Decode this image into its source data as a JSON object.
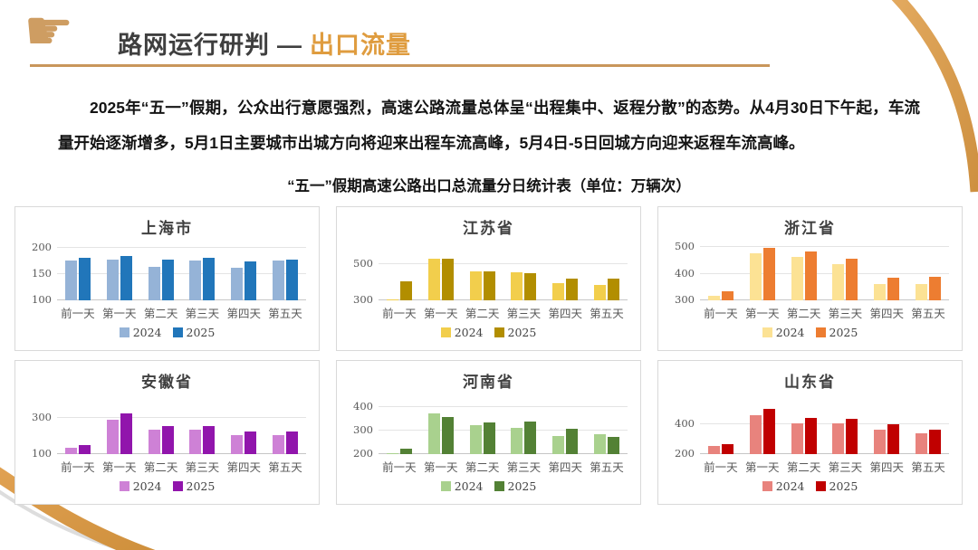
{
  "header": {
    "title_main": "路网运行研判",
    "title_dash": "—",
    "title_accent": "出口流量"
  },
  "intro": "2025年“五一”假期，公众出行意愿强烈，高速公路流量总体呈“出程集中、返程分散”的态势。从4月30日下午起，车流量开始逐渐增多，5月1日主要城市出城方向将迎来出程车流高峰，5月4日-5日回城方向迎来返程车流高峰。",
  "caption": "“五一”假期高速公路出口总流量分日统计表（单位：万辆次）",
  "colors": {
    "accent_orange": "#DF9C3F",
    "underline_tan": "#C9965B",
    "hand_icon_tan": "#CE9D62",
    "title_gray": "#3F3F3F",
    "card_border": "#D9D9D9",
    "axis_text": "#595959"
  },
  "chart_data": [
    {
      "type": "bar",
      "title": "上海市",
      "categories": [
        "前一天",
        "第一天",
        "第二天",
        "第三天",
        "第四天",
        "第五天"
      ],
      "series": [
        {
          "name": "2024",
          "color": "#95B3D7",
          "values": [
            175,
            177,
            163,
            176,
            161,
            175
          ]
        },
        {
          "name": "2025",
          "color": "#2176BA",
          "values": [
            180,
            184,
            178,
            180,
            173,
            178
          ]
        }
      ],
      "yticks": [
        100,
        150,
        200
      ],
      "ylim": [
        100,
        203
      ],
      "grid": true,
      "legend_position": "bottom"
    },
    {
      "type": "bar",
      "title": "江苏省",
      "categories": [
        "前一天",
        "第一天",
        "第二天",
        "第三天",
        "第四天",
        "第五天"
      ],
      "series": [
        {
          "name": "2024",
          "color": "#F2CE4C",
          "values": [
            305,
            528,
            461,
            456,
            396,
            385
          ]
        },
        {
          "name": "2025",
          "color": "#B28E00",
          "values": [
            405,
            532,
            458,
            449,
            421,
            420
          ]
        }
      ],
      "yticks": [
        300,
        500
      ],
      "ylim": [
        300,
        600
      ],
      "grid": true,
      "legend_position": "bottom"
    },
    {
      "type": "bar",
      "title": "浙江省",
      "categories": [
        "前一天",
        "第一天",
        "第二天",
        "第三天",
        "第四天",
        "第五天"
      ],
      "series": [
        {
          "name": "2024",
          "color": "#FCE294",
          "values": [
            318,
            478,
            465,
            438,
            362,
            363
          ]
        },
        {
          "name": "2025",
          "color": "#ED7D31",
          "values": [
            333,
            497,
            484,
            458,
            386,
            389
          ]
        }
      ],
      "yticks": [
        300,
        400,
        500
      ],
      "ylim": [
        300,
        505
      ],
      "grid": true,
      "legend_position": "bottom"
    },
    {
      "type": "bar",
      "title": "安徽省",
      "categories": [
        "前一天",
        "第一天",
        "第二天",
        "第三天",
        "第四天",
        "第五天"
      ],
      "series": [
        {
          "name": "2024",
          "color": "#CE81D6",
          "values": [
            135,
            292,
            233,
            233,
            203,
            203
          ]
        },
        {
          "name": "2025",
          "color": "#9115AC",
          "values": [
            148,
            323,
            253,
            253,
            223,
            223
          ]
        }
      ],
      "yticks": [
        100,
        300
      ],
      "ylim": [
        100,
        400
      ],
      "grid": true,
      "legend_position": "bottom"
    },
    {
      "type": "bar",
      "title": "河南省",
      "categories": [
        "前一天",
        "第一天",
        "第二天",
        "第三天",
        "第四天",
        "第五天"
      ],
      "series": [
        {
          "name": "2024",
          "color": "#A9D18E",
          "values": [
            205,
            372,
            323,
            310,
            277,
            283
          ]
        },
        {
          "name": "2025",
          "color": "#538135",
          "values": [
            222,
            356,
            333,
            337,
            306,
            274
          ]
        }
      ],
      "yticks": [
        200,
        300,
        400
      ],
      "ylim": [
        200,
        430
      ],
      "grid": true,
      "legend_position": "bottom"
    },
    {
      "type": "bar",
      "title": "山东省",
      "categories": [
        "前一天",
        "第一天",
        "第二天",
        "第三天",
        "第四天",
        "第五天"
      ],
      "series": [
        {
          "name": "2024",
          "color": "#E8837D",
          "values": [
            253,
            460,
            403,
            402,
            362,
            338
          ]
        },
        {
          "name": "2025",
          "color": "#C00000",
          "values": [
            263,
            498,
            442,
            432,
            400,
            362
          ]
        }
      ],
      "yticks": [
        200,
        400
      ],
      "ylim": [
        200,
        560
      ],
      "grid": true,
      "legend_position": "bottom"
    }
  ]
}
